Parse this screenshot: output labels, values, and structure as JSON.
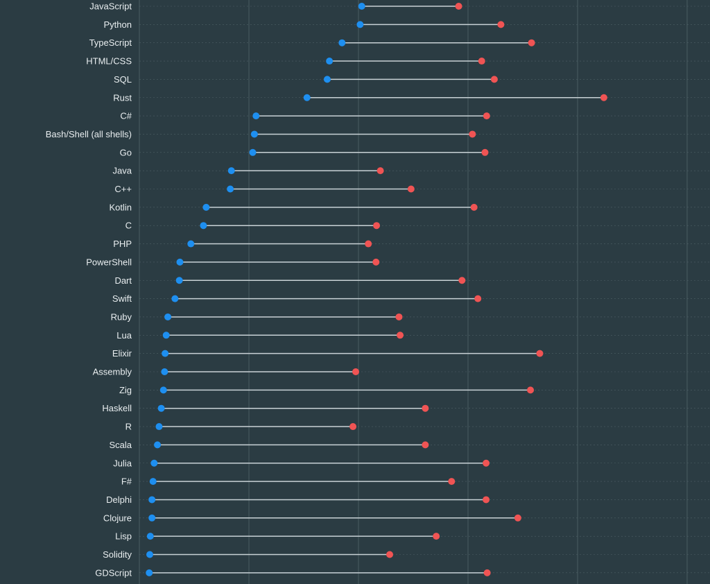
{
  "chart_data": {
    "type": "dumbbell",
    "title": "",
    "xlabel": "",
    "ylabel": "",
    "xlim": [
      0,
      100
    ],
    "grid": true,
    "colors": {
      "background": "#2b3c43",
      "start_dot": "#1e8ff0",
      "end_dot": "#f05454",
      "connector": "#c9d2d6",
      "grid": "#5c6e75"
    },
    "categories": [
      "JavaScript",
      "Python",
      "TypeScript",
      "HTML/CSS",
      "SQL",
      "Rust",
      "C#",
      "Bash/Shell (all shells)",
      "Go",
      "Java",
      "C++",
      "Kotlin",
      "C",
      "PHP",
      "PowerShell",
      "Dart",
      "Swift",
      "Ruby",
      "Lua",
      "Elixir",
      "Assembly",
      "Zig",
      "Haskell",
      "R",
      "Scala",
      "Julia",
      "F#",
      "Delphi",
      "Clojure",
      "Lisp",
      "Solidity",
      "GDScript"
    ],
    "series": [
      {
        "values": [
          40.6,
          40.3,
          37.0,
          34.7,
          34.3,
          30.6,
          21.3,
          21.0,
          20.7,
          16.8,
          16.6,
          12.2,
          11.7,
          9.4,
          7.4,
          7.3,
          6.5,
          5.2,
          4.9,
          4.7,
          4.6,
          4.4,
          4.0,
          3.6,
          3.3,
          2.7,
          2.5,
          2.3,
          2.3,
          2.0,
          1.9,
          1.8
        ]
      },
      {
        "values": [
          58.3,
          66.0,
          71.6,
          62.5,
          64.8,
          84.8,
          63.4,
          60.8,
          63.1,
          44.0,
          49.6,
          61.1,
          43.3,
          41.8,
          43.2,
          58.9,
          61.8,
          47.4,
          47.6,
          73.1,
          39.5,
          71.4,
          52.2,
          39.0,
          52.2,
          63.3,
          57.0,
          63.3,
          69.1,
          54.2,
          45.7,
          63.5
        ]
      }
    ]
  }
}
